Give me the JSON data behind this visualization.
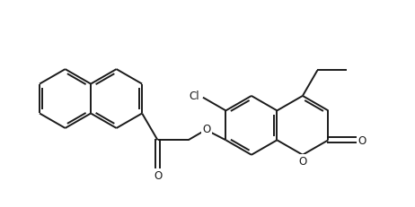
{
  "bg_color": "#ffffff",
  "line_color": "#1a1a1a",
  "line_width": 1.4,
  "font_size": 8.5,
  "figsize": [
    4.62,
    2.32
  ],
  "dpi": 100,
  "xlim": [
    0,
    9.24
  ],
  "ylim": [
    0,
    4.64
  ]
}
